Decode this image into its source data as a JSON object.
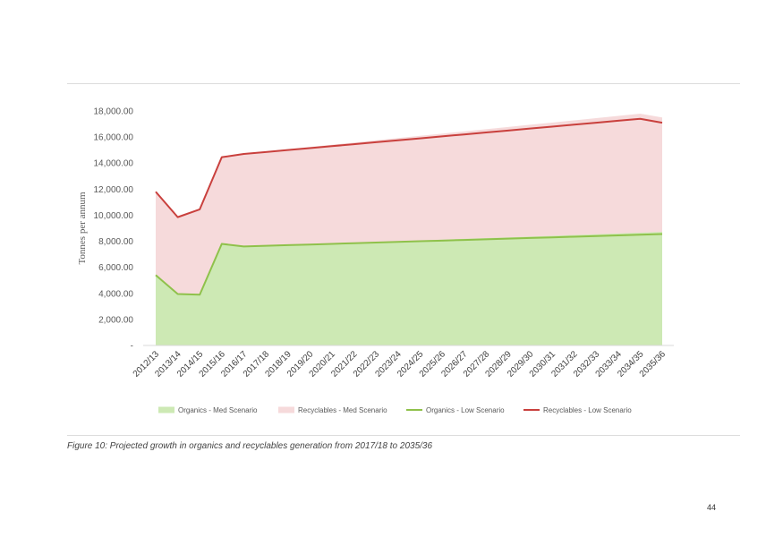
{
  "chart_data": {
    "type": "area",
    "title": "",
    "xlabel": "",
    "ylabel": "Tonnes per annum",
    "ylim": [
      0,
      18000
    ],
    "grid": false,
    "legend_position": "bottom",
    "ytick_labels": [
      "-",
      "2,000.00",
      "4,000.00",
      "6,000.00",
      "8,000.00",
      "10,000.00",
      "12,000.00",
      "14,000.00",
      "16,000.00",
      "18,000.00"
    ],
    "ytick_values": [
      0,
      2000,
      4000,
      6000,
      8000,
      10000,
      12000,
      14000,
      16000,
      18000
    ],
    "categories": [
      "2012/13",
      "2013/14",
      "2014/15",
      "2015/16",
      "2016/17",
      "2017/18",
      "2018/19",
      "2019/20",
      "2020/21",
      "2021/22",
      "2022/23",
      "2023/24",
      "2024/25",
      "2025/26",
      "2026/27",
      "2027/28",
      "2028/29",
      "2029/30",
      "2030/31",
      "2031/32",
      "2032/33",
      "2033/34",
      "2034/35",
      "2035/36"
    ],
    "series": [
      {
        "name": "Organics - Med Scenario",
        "kind": "area",
        "color": "#cde9b4",
        "values": [
          5400,
          3950,
          3900,
          7800,
          7600,
          7650,
          7700,
          7760,
          7820,
          7880,
          7940,
          8000,
          8060,
          8120,
          8180,
          8240,
          8300,
          8360,
          8420,
          8480,
          8540,
          8600,
          8660,
          8720
        ]
      },
      {
        "name": "Recyclables - Med Scenario",
        "kind": "area",
        "color": "#f6dadb",
        "values": [
          11800,
          9850,
          10450,
          14500,
          14750,
          14900,
          15070,
          15240,
          15410,
          15580,
          15750,
          15920,
          16090,
          16260,
          16430,
          16600,
          16770,
          16940,
          17110,
          17280,
          17450,
          17620,
          17790,
          17500
        ]
      },
      {
        "name": "Organics - Low Scenario",
        "kind": "line",
        "color": "#8fc14b",
        "values": [
          5400,
          3950,
          3900,
          7800,
          7600,
          7650,
          7700,
          7750,
          7800,
          7850,
          7900,
          7950,
          8000,
          8050,
          8100,
          8150,
          8200,
          8250,
          8300,
          8350,
          8400,
          8450,
          8500,
          8550
        ]
      },
      {
        "name": "Recyclables - Low Scenario",
        "kind": "line",
        "color": "#c9403d",
        "values": [
          11800,
          9850,
          10450,
          14450,
          14700,
          14850,
          15000,
          15150,
          15300,
          15450,
          15600,
          15750,
          15900,
          16050,
          16200,
          16350,
          16500,
          16650,
          16800,
          16950,
          17100,
          17250,
          17400,
          17100
        ]
      }
    ]
  },
  "caption": "Figure 10: Projected growth in organics and recyclables generation from 2017/18 to 2035/36",
  "page_number": "44"
}
